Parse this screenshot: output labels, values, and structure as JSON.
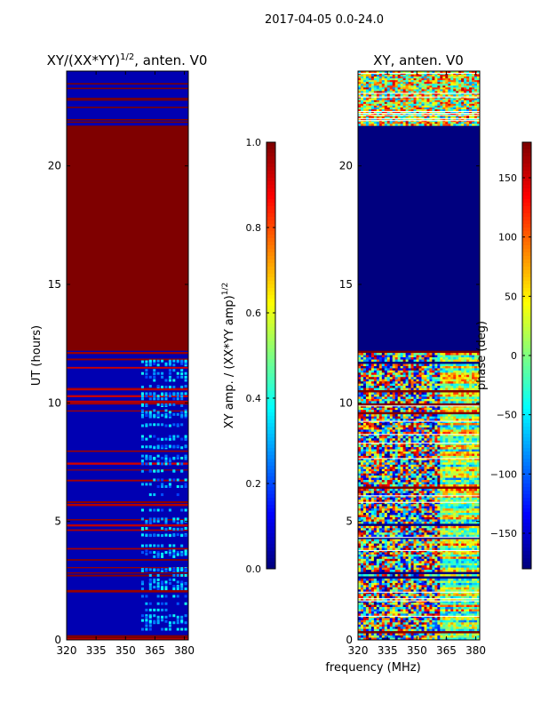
{
  "figure_title": "2017-04-05 0.0-24.0",
  "colormap": [
    "#00007f",
    "#0000ff",
    "#007fff",
    "#00ffff",
    "#7fff7f",
    "#ffff00",
    "#ff7f00",
    "#ff0000",
    "#7f0000"
  ],
  "chart_data": [
    {
      "type": "heatmap",
      "title_main": "XY/(XX*YY)",
      "title_sup": "1/2",
      "title_rest": ", anten. V0",
      "xlabel": "",
      "ylabel": "UT (hours)",
      "xlim": [
        320,
        382
      ],
      "ylim": [
        0,
        24
      ],
      "xticks": [
        320,
        335,
        350,
        365,
        380
      ],
      "yticks": [
        0,
        5,
        10,
        15,
        20
      ],
      "colorbar": {
        "label_main": "XY amp. / (XX*YY amp)",
        "label_sup": "1/2",
        "range": [
          0,
          1
        ],
        "ticks": [
          "0.0",
          "0.2",
          "0.4",
          "0.6",
          "0.8",
          "1.0"
        ],
        "tick_values": [
          0,
          0.2,
          0.4,
          0.6,
          0.8,
          1.0
        ]
      },
      "regions": [
        {
          "ut": [
            0,
            0.2
          ],
          "value": 1.0,
          "description": "saturated band"
        },
        {
          "ut": [
            0.2,
            12.2
          ],
          "value": 0.05,
          "description": "low normalized amplitude, brighter 360-380 MHz"
        },
        {
          "ut": [
            12.2,
            21.7
          ],
          "value": 1.0,
          "description": "saturated"
        },
        {
          "ut": [
            21.7,
            24
          ],
          "value": 0.05,
          "description": "low with saturated rows"
        }
      ]
    },
    {
      "type": "heatmap",
      "title_main": "XY, anten. V0",
      "xlabel": "frequency (MHz)",
      "ylabel": "",
      "xlim": [
        320,
        382
      ],
      "ylim": [
        0,
        24
      ],
      "xticks": [
        320,
        335,
        350,
        365,
        380
      ],
      "yticks": [
        0,
        5,
        10,
        15,
        20
      ],
      "colorbar": {
        "label_main": "phase (deg)",
        "range": [
          -180,
          180
        ],
        "ticks": [
          "−150",
          "−100",
          "−50",
          "0",
          "50",
          "100",
          "150"
        ],
        "tick_values": [
          -150,
          -100,
          -50,
          0,
          50,
          100,
          150
        ]
      },
      "regions": [
        {
          "ut": [
            0,
            12.2
          ],
          "value": "noisy",
          "description": "random phase"
        },
        {
          "ut": [
            12.2,
            21.7
          ],
          "value": -180,
          "description": "constant phase"
        },
        {
          "ut": [
            21.7,
            24
          ],
          "value": "noisy",
          "description": "random phase"
        }
      ]
    }
  ]
}
